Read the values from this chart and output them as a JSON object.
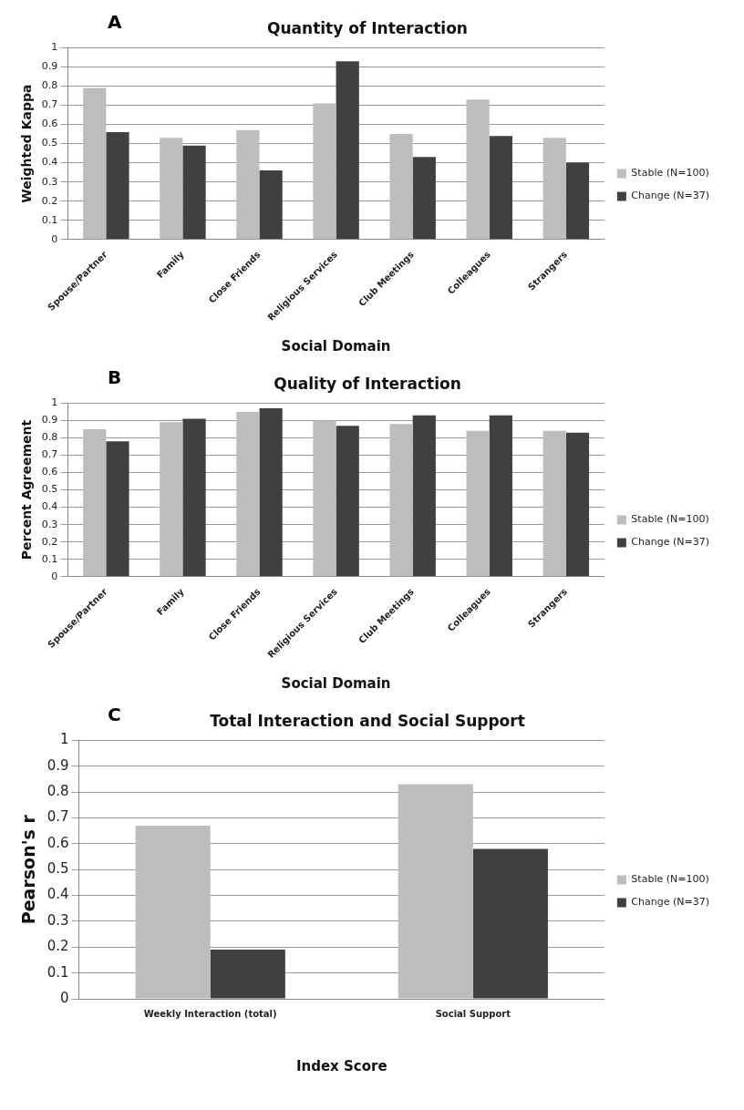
{
  "chart_data": [
    {
      "type": "bar",
      "title": "Quantity of Interaction",
      "xlabel": "Social Domain",
      "ylabel": "Weighted Kappa",
      "annotations": [
        "A"
      ],
      "categories": [
        "Spouse/Partner",
        "Family",
        "Close Friends",
        "Religious Services",
        "Club Meetings",
        "Colleagues",
        "Strangers"
      ],
      "series": [
        {
          "name": "Stable (N=100)",
          "color": "#bdbdbd",
          "values": [
            0.79,
            0.53,
            0.57,
            0.71,
            0.55,
            0.73,
            0.53
          ]
        },
        {
          "name": "Change (N=37)",
          "color": "#404040",
          "values": [
            0.56,
            0.49,
            0.36,
            0.93,
            0.43,
            0.54,
            0.4
          ]
        }
      ],
      "ylim": [
        0,
        1
      ],
      "yticks": [
        0,
        0.1,
        0.2,
        0.3,
        0.4,
        0.5,
        0.6,
        0.7,
        0.8,
        0.9,
        1
      ],
      "grid": "y",
      "legend": "right"
    },
    {
      "type": "bar",
      "title": "Quality of Interaction",
      "xlabel": "Social Domain",
      "ylabel": "Percent Agreement",
      "annotations": [
        "B"
      ],
      "categories": [
        "Spouse/Partner",
        "Family",
        "Close Friends",
        "Religious Services",
        "Club Meetings",
        "Colleagues",
        "Strangers"
      ],
      "series": [
        {
          "name": "Stable (N=100)",
          "color": "#bdbdbd",
          "values": [
            0.85,
            0.89,
            0.95,
            0.9,
            0.88,
            0.84,
            0.84
          ]
        },
        {
          "name": "Change (N=37)",
          "color": "#404040",
          "values": [
            0.78,
            0.91,
            0.97,
            0.87,
            0.93,
            0.93,
            0.83
          ]
        }
      ],
      "ylim": [
        0,
        1
      ],
      "yticks": [
        0,
        0.1,
        0.2,
        0.3,
        0.4,
        0.5,
        0.6,
        0.7,
        0.8,
        0.9,
        1
      ],
      "grid": "y",
      "legend": "right"
    },
    {
      "type": "bar",
      "title": "Total Interaction and Social Support",
      "xlabel": "Index Score",
      "ylabel": "Pearson's r",
      "annotations": [
        "C"
      ],
      "categories": [
        "Weekly Interaction (total)",
        "Social Support"
      ],
      "series": [
        {
          "name": "Stable (N=100)",
          "color": "#bdbdbd",
          "values": [
            0.67,
            0.83
          ]
        },
        {
          "name": "Change (N=37)",
          "color": "#404040",
          "values": [
            0.19,
            0.58
          ]
        }
      ],
      "ylim": [
        0,
        1
      ],
      "yticks": [
        0,
        0.1,
        0.2,
        0.3,
        0.4,
        0.5,
        0.6,
        0.7,
        0.8,
        0.9,
        1
      ],
      "grid": "y",
      "legend": "right"
    }
  ]
}
